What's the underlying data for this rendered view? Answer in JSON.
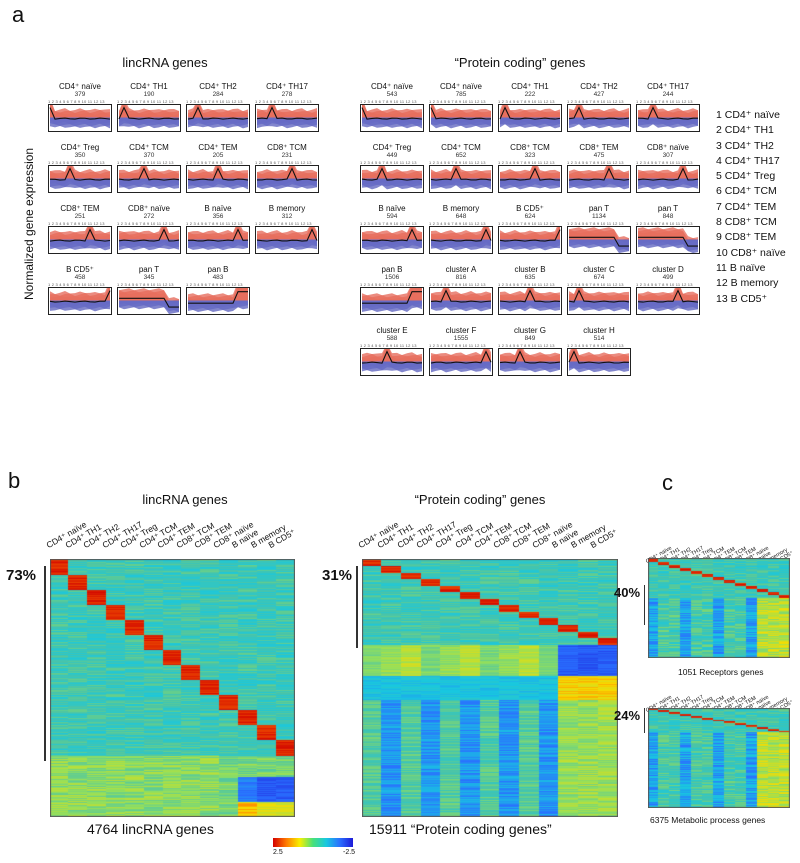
{
  "panel_labels": {
    "a": "a",
    "b": "b",
    "c": "c"
  },
  "panel_a": {
    "y_axis_label": "Normalized gene expression",
    "lincrna_title": "lincRNA genes",
    "protein_title": "“Protein coding” genes",
    "tick_text": "1 2 3 4 5 6 7 8 9 10 11 12 13",
    "lincrna_clusters": [
      {
        "label": "CD4⁺ naïve",
        "count": "379",
        "peak": 1
      },
      {
        "label": "CD4⁺ TH1",
        "count": "190",
        "peak": 2
      },
      {
        "label": "CD4⁺ TH2",
        "count": "284",
        "peak": 3
      },
      {
        "label": "CD4⁺ TH17",
        "count": "278",
        "peak": 4
      },
      {
        "label": "CD4⁺ Treg",
        "count": "350",
        "peak": 5
      },
      {
        "label": "CD4⁺ TCM",
        "count": "370",
        "peak": 6
      },
      {
        "label": "CD4⁺ TEM",
        "count": "205",
        "peak": 7
      },
      {
        "label": "CD8⁺ TCM",
        "count": "231",
        "peak": 8
      },
      {
        "label": "CD8⁺ TEM",
        "count": "251",
        "peak": 9
      },
      {
        "label": "CD8⁺ naïve",
        "count": "272",
        "peak": 10
      },
      {
        "label": "B naïve",
        "count": "356",
        "peak": 11
      },
      {
        "label": "B memory",
        "count": "312",
        "peak": 12
      },
      {
        "label": "B CD5⁺",
        "count": "458",
        "peak": 13
      },
      {
        "label": "pan T",
        "count": "345",
        "peak": 0
      },
      {
        "label": "pan B",
        "count": "483",
        "peak": -1
      }
    ],
    "protein_clusters": [
      {
        "label": "CD4⁺ naïve",
        "count": "543",
        "peak": 1
      },
      {
        "label": "CD4⁺ naïve",
        "count": "785",
        "peak": 1
      },
      {
        "label": "CD4⁺ TH1",
        "count": "222",
        "peak": 2
      },
      {
        "label": "CD4⁺ TH2",
        "count": "427",
        "peak": 3
      },
      {
        "label": "CD4⁺ TH17",
        "count": "244",
        "peak": 4
      },
      {
        "label": "CD4⁺ Treg",
        "count": "449",
        "peak": 5
      },
      {
        "label": "CD4⁺ TCM",
        "count": "652",
        "peak": 6
      },
      {
        "label": "CD8⁺ TCM",
        "count": "323",
        "peak": 8
      },
      {
        "label": "CD8⁺ TEM",
        "count": "475",
        "peak": 9
      },
      {
        "label": "CD8⁺ naïve",
        "count": "307",
        "peak": 10
      },
      {
        "label": "B naïve",
        "count": "594",
        "peak": 11
      },
      {
        "label": "B memory",
        "count": "648",
        "peak": 12
      },
      {
        "label": "B CD5⁺",
        "count": "624",
        "peak": 13
      },
      {
        "label": "pan T",
        "count": "1134",
        "peak": 0
      },
      {
        "label": "pan T",
        "count": "848",
        "peak": 0
      },
      {
        "label": "pan B",
        "count": "1506",
        "peak": -1
      },
      {
        "label": "cluster A",
        "count": "816",
        "peak": 4
      },
      {
        "label": "cluster B",
        "count": "635",
        "peak": 7
      },
      {
        "label": "cluster C",
        "count": "674",
        "peak": 3
      },
      {
        "label": "cluster D",
        "count": "499",
        "peak": 9
      },
      {
        "label": "cluster E",
        "count": "588",
        "peak": 6
      },
      {
        "label": "cluster F",
        "count": "1555",
        "peak": 12
      },
      {
        "label": "cluster G",
        "count": "849",
        "peak": 5
      },
      {
        "label": "cluster H",
        "count": "514",
        "peak": 2
      }
    ],
    "legend": [
      "1  CD4⁺ naïve",
      "2  CD4⁺ TH1",
      "3  CD4⁺ TH2",
      "4  CD4⁺ TH17",
      "5  CD4⁺ Treg",
      "6  CD4⁺ TCM",
      "7  CD4⁺ TEM",
      "8  CD8⁺ TCM",
      "9  CD8⁺ TEM",
      "10 CD8⁺ naïve",
      "11 B naïve",
      "12 B memory",
      "13 B CD5⁺"
    ]
  },
  "panel_b": {
    "lincrna_title": "lincRNA genes",
    "protein_title": "“Protein coding” genes",
    "lincrna_pct": "73%",
    "protein_pct": "31%",
    "lincrna_caption": "4764 lincRNA genes",
    "protein_caption": "15911 “Protein coding genes”",
    "column_labels": [
      "CD4⁺ naïve",
      "CD4⁺ TH1",
      "CD4⁺ TH2",
      "CD4⁺ TH17",
      "CD4⁺ Treg",
      "CD4⁺ TCM",
      "CD4⁺ TEM",
      "CD8⁺ TCM",
      "CD8⁺ TEM",
      "CD8⁺ naïve",
      "B naïve",
      "B memory",
      "B CD5⁺"
    ],
    "colorbar": {
      "max": "2.5",
      "min": "-2.5"
    }
  },
  "panel_c": {
    "receptors_pct": "40%",
    "metabolic_pct": "24%",
    "receptors_caption": "1051 Receptors genes",
    "metabolic_caption": "6375 Metabolic process genes"
  },
  "colors": {
    "high": "#e8401c",
    "low": "#2a3bd0",
    "mid": "#4fc7a8"
  }
}
